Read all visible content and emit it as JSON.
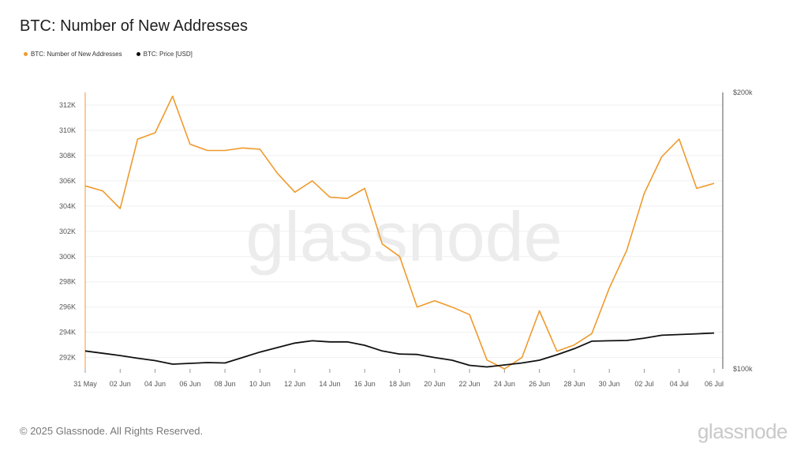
{
  "title": "BTC: Number of New Addresses",
  "legend": [
    {
      "label": "BTC: Number of New Addresses",
      "color": "#f09a2c"
    },
    {
      "label": "BTC: Price [USD]",
      "color": "#111111"
    }
  ],
  "watermark": "glassnode",
  "footer": {
    "copyright": "© 2025 Glassnode. All Rights Reserved.",
    "logo": "glassnode"
  },
  "chart_data": {
    "type": "line",
    "title": "BTC: Number of New Addresses",
    "x_ticks": [
      "31 May",
      "02 Jun",
      "04 Jun",
      "06 Jun",
      "08 Jun",
      "10 Jun",
      "12 Jun",
      "14 Jun",
      "16 Jun",
      "18 Jun",
      "20 Jun",
      "22 Jun",
      "24 Jun",
      "26 Jun",
      "28 Jun",
      "30 Jun",
      "02 Jul",
      "04 Jul",
      "06 Jul"
    ],
    "y_left": {
      "ticks": [
        292000,
        294000,
        296000,
        298000,
        300000,
        302000,
        304000,
        306000,
        308000,
        310000,
        312000
      ],
      "tick_labels": [
        "292K",
        "294K",
        "296K",
        "298K",
        "300K",
        "302K",
        "304K",
        "306K",
        "308K",
        "310K",
        "312K"
      ],
      "range": [
        291100,
        313000
      ]
    },
    "y_right": {
      "tick_labels": [
        "$200k",
        "$100k"
      ],
      "scale": "log",
      "range": [
        100000,
        200000
      ]
    },
    "grid": true,
    "series": [
      {
        "name": "BTC: Number of New Addresses",
        "axis": "left",
        "color": "#f09a2c",
        "dates": [
          "31 May",
          "01 Jun",
          "02 Jun",
          "03 Jun",
          "04 Jun",
          "05 Jun",
          "06 Jun",
          "07 Jun",
          "08 Jun",
          "09 Jun",
          "10 Jun",
          "11 Jun",
          "12 Jun",
          "13 Jun",
          "14 Jun",
          "15 Jun",
          "16 Jun",
          "17 Jun",
          "18 Jun",
          "19 Jun",
          "20 Jun",
          "21 Jun",
          "22 Jun",
          "23 Jun",
          "24 Jun",
          "25 Jun",
          "26 Jun",
          "27 Jun",
          "28 Jun",
          "29 Jun",
          "30 Jun",
          "01 Jul",
          "02 Jul",
          "03 Jul",
          "04 Jul",
          "05 Jul",
          "06 Jul"
        ],
        "values": [
          305600,
          305200,
          303800,
          309300,
          309800,
          312700,
          308900,
          308400,
          308400,
          308600,
          308500,
          306600,
          305100,
          306000,
          304700,
          304600,
          305400,
          301000,
          300000,
          296000,
          296500,
          296000,
          295400,
          291800,
          291100,
          292000,
          295700,
          292500,
          293000,
          293900,
          297500,
          300500,
          305000,
          307900,
          309300,
          305400,
          305800
        ]
      },
      {
        "name": "BTC: Price [USD]",
        "axis": "right",
        "color": "#111111",
        "dates": [
          "31 May",
          "01 Jun",
          "02 Jun",
          "03 Jun",
          "04 Jun",
          "05 Jun",
          "06 Jun",
          "07 Jun",
          "08 Jun",
          "09 Jun",
          "10 Jun",
          "11 Jun",
          "12 Jun",
          "13 Jun",
          "14 Jun",
          "15 Jun",
          "16 Jun",
          "17 Jun",
          "18 Jun",
          "19 Jun",
          "20 Jun",
          "21 Jun",
          "22 Jun",
          "23 Jun",
          "24 Jun",
          "25 Jun",
          "26 Jun",
          "27 Jun",
          "28 Jun",
          "29 Jun",
          "30 Jun",
          "01 Jul",
          "02 Jul",
          "03 Jul",
          "04 Jul",
          "05 Jul",
          "06 Jul"
        ],
        "values": [
          104600,
          104000,
          103400,
          102700,
          102100,
          101200,
          101400,
          101600,
          101500,
          102900,
          104300,
          105500,
          106700,
          107300,
          107000,
          107000,
          106100,
          104600,
          103800,
          103700,
          102900,
          102200,
          100900,
          100500,
          101000,
          101500,
          102200,
          103600,
          105200,
          107200,
          107300,
          107400,
          108000,
          108800,
          109000,
          109200,
          109400
        ]
      }
    ]
  }
}
